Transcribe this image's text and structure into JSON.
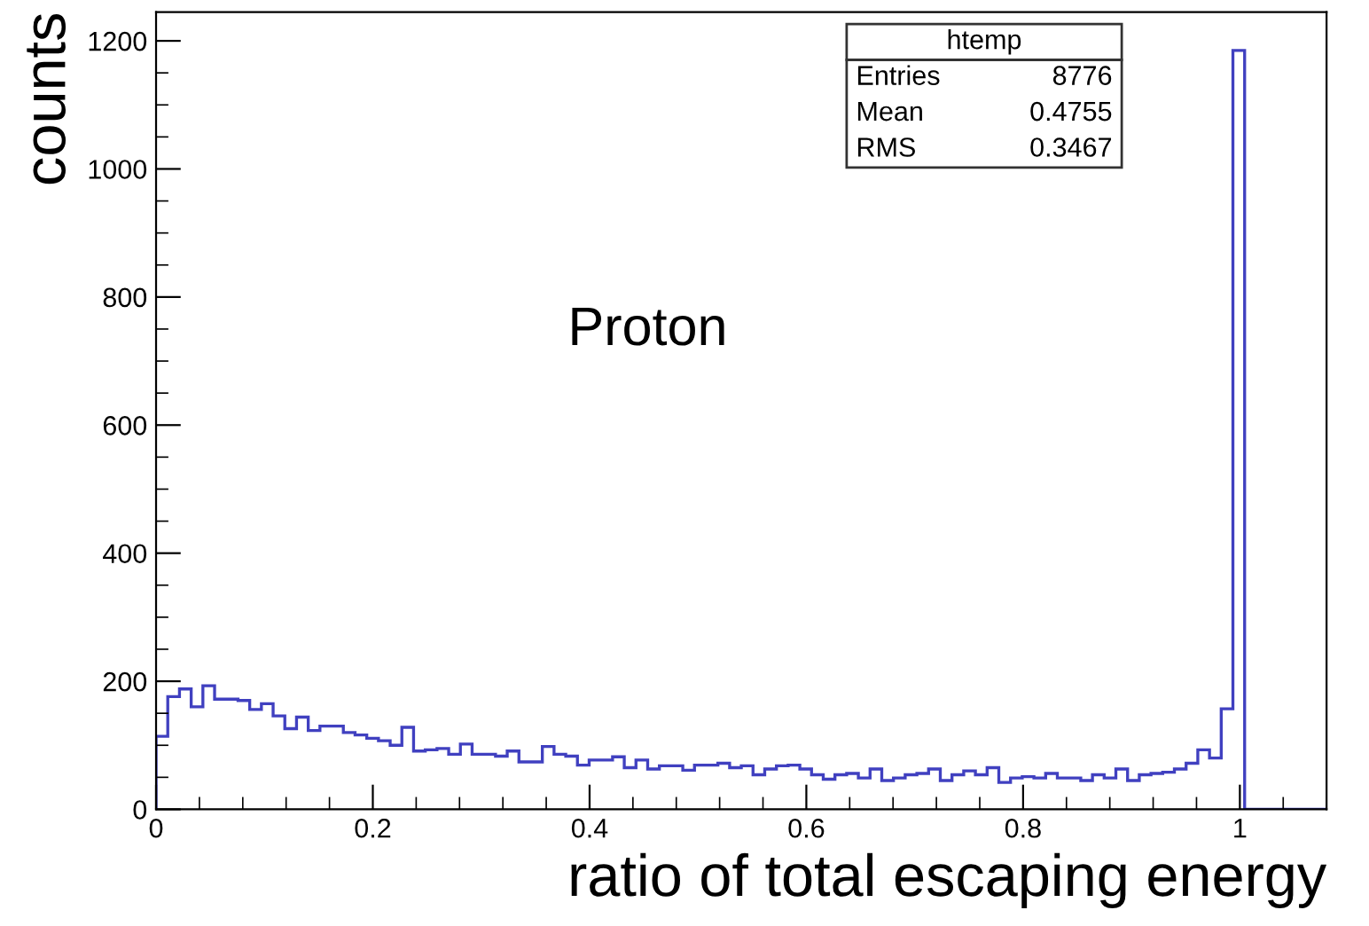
{
  "chart_data": {
    "type": "histogram",
    "xlabel": "ratio of total escaping energy",
    "ylabel": "counts",
    "bins": [
      0,
      0.0108,
      0.0216,
      0.0324,
      0.0432,
      0.054,
      0.0648,
      0.0756,
      0.0864,
      0.0972,
      0.108,
      0.1188,
      0.1296,
      0.1404,
      0.1512,
      0.162,
      0.1728,
      0.1836,
      0.1944,
      0.2052,
      0.216,
      0.2268,
      0.2376,
      0.2484,
      0.2592,
      0.27,
      0.2808,
      0.2916,
      0.3024,
      0.3132,
      0.324,
      0.3348,
      0.3456,
      0.3564,
      0.3672,
      0.378,
      0.3888,
      0.3996,
      0.4104,
      0.4212,
      0.432,
      0.4428,
      0.4536,
      0.4644,
      0.4752,
      0.486,
      0.4968,
      0.5076,
      0.5184,
      0.5292,
      0.54,
      0.5508,
      0.5616,
      0.5724,
      0.5832,
      0.594,
      0.6048,
      0.6156,
      0.6264,
      0.6372,
      0.648,
      0.6588,
      0.6696,
      0.6804,
      0.6912,
      0.702,
      0.7128,
      0.7236,
      0.7344,
      0.7452,
      0.756,
      0.7668,
      0.7776,
      0.7884,
      0.7992,
      0.81,
      0.8208,
      0.8316,
      0.8424,
      0.8532,
      0.864,
      0.8748,
      0.8856,
      0.8964,
      0.9072,
      0.918,
      0.9288,
      0.9396,
      0.9504,
      0.9612,
      0.972,
      0.9828,
      0.9936,
      1.0044,
      1.0152,
      1.026,
      1.0368,
      1.0476,
      1.0584,
      1.0692,
      1.08
    ],
    "values": [
      114,
      176,
      188,
      160,
      193,
      172,
      172,
      170,
      156,
      165,
      146,
      126,
      144,
      123,
      130,
      130,
      120,
      116,
      111,
      107,
      100,
      128,
      91,
      93,
      95,
      86,
      102,
      86,
      86,
      83,
      91,
      74,
      74,
      98,
      86,
      83,
      69,
      77,
      77,
      82,
      65,
      77,
      63,
      68,
      68,
      61,
      69,
      69,
      72,
      65,
      68,
      54,
      63,
      68,
      69,
      63,
      54,
      47,
      54,
      56,
      49,
      63,
      45,
      49,
      54,
      56,
      63,
      45,
      54,
      60,
      54,
      65,
      42,
      49,
      51,
      49,
      56,
      49,
      49,
      45,
      54,
      49,
      63,
      45,
      54,
      56,
      58,
      63,
      72,
      93,
      80,
      157,
      1185,
      0,
      0,
      0,
      0,
      0,
      0,
      0
    ],
    "color": "#4040c0",
    "xlim": [
      0,
      1.08
    ],
    "ylim": [
      0,
      1245
    ],
    "xticks": [
      0,
      0.2,
      0.4,
      0.6,
      0.8,
      1
    ],
    "yticks": [
      0,
      200,
      400,
      600,
      800,
      1000,
      1200
    ],
    "grid": false,
    "legend": false,
    "annotations": [
      "Proton",
      "htemp",
      "Entries",
      "8776",
      "Mean",
      "0.4755",
      "RMS",
      "0.3467"
    ]
  }
}
